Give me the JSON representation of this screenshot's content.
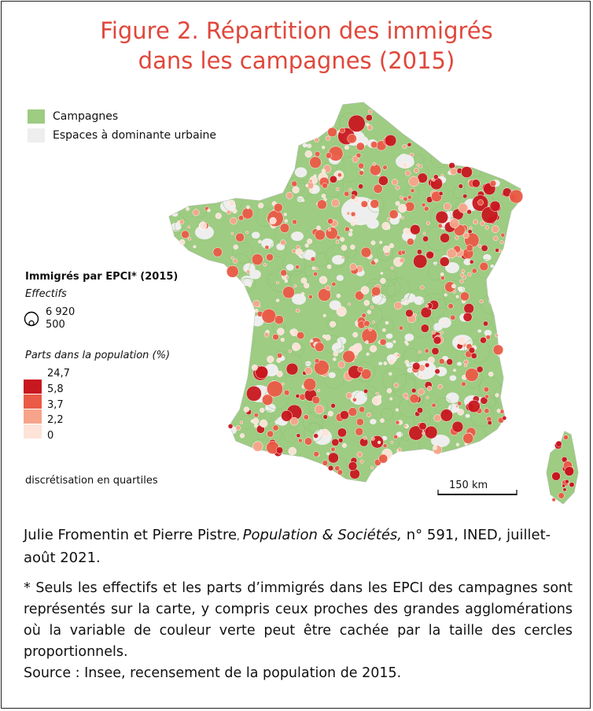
{
  "title": {
    "line1": "Figure 2. Répartition des immigrés",
    "line2": "dans les campagnes (2015)"
  },
  "legend_zones": {
    "rural": {
      "label": "Campagnes",
      "color": "#9dcc82"
    },
    "urban": {
      "label": "Espaces à dominante urbaine",
      "color": "#eeeeee"
    }
  },
  "legend_circles": {
    "heading": "Immigrés par EPCI* (2015)",
    "size_subtitle": "Effectifs",
    "size_values": [
      "6 920",
      "500"
    ],
    "color_subtitle": "Parts dans la population (%)",
    "class_breaks": [
      "24,7",
      "5,8",
      "3,7",
      "2,2",
      "0"
    ],
    "class_colors": [
      "#c8171f",
      "#ea5a46",
      "#f7a48b",
      "#fde3d8"
    ],
    "discretisation_note": "discrétisation en quartiles"
  },
  "scale_bar": {
    "label": "150 km"
  },
  "credit": {
    "authors": "Julie Fromentin et Pierre Pistre",
    "sep": ", ",
    "journal": "Population & Sociétés,",
    "rest": " n° 591, INED, juillet-août 2021."
  },
  "note": {
    "text": "* Seuls les effectifs et les parts d’immigrés dans les EPCI des campagnes sont représentés sur la carte, y compris ceux proches des grandes agglomérations où la variable de couleur verte peut être cachée par la taille des cercles proportionnels.",
    "source": "Source : Insee, recensement de la population de 2015."
  },
  "colors": {
    "title": "#e0473b",
    "rural_fill": "#9dcc82",
    "urban_fill": "#eeeeee",
    "border": "#bdbdbd"
  }
}
